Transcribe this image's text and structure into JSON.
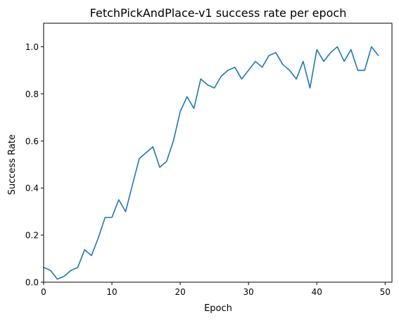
{
  "chart_data": {
    "type": "line",
    "title": "FetchPickAndPlace-v1 success rate per epoch",
    "xlabel": "Epoch",
    "ylabel": "Success Rate",
    "xlim": [
      0,
      51
    ],
    "ylim": [
      0,
      1.1
    ],
    "xticks": [
      0,
      10,
      20,
      30,
      40,
      50
    ],
    "yticks": [
      0.0,
      0.2,
      0.4,
      0.6,
      0.8,
      1.0
    ],
    "xtick_labels": [
      "0",
      "10",
      "20",
      "30",
      "40",
      "50"
    ],
    "ytick_labels": [
      "0.0",
      "0.2",
      "0.4",
      "0.6",
      "0.8",
      "1.0"
    ],
    "grid": false,
    "legend": "none",
    "series": [
      {
        "color": "#1f77b4",
        "x": [
          0,
          1,
          2,
          3,
          4,
          5,
          6,
          7,
          8,
          9,
          10,
          11,
          12,
          13,
          14,
          15,
          16,
          17,
          18,
          19,
          20,
          21,
          22,
          23,
          24,
          25,
          26,
          27,
          28,
          29,
          30,
          31,
          32,
          33,
          34,
          35,
          36,
          37,
          38,
          39,
          40,
          41,
          42,
          43,
          44,
          45,
          46,
          47,
          48,
          49
        ],
        "y": [
          0.063,
          0.05,
          0.013,
          0.025,
          0.05,
          0.063,
          0.138,
          0.113,
          0.188,
          0.275,
          0.275,
          0.35,
          0.3,
          0.413,
          0.525,
          0.55,
          0.575,
          0.488,
          0.513,
          0.6,
          0.725,
          0.788,
          0.738,
          0.863,
          0.838,
          0.825,
          0.875,
          0.9,
          0.913,
          0.863,
          0.9,
          0.938,
          0.913,
          0.963,
          0.975,
          0.925,
          0.9,
          0.863,
          0.938,
          0.825,
          0.988,
          0.938,
          0.975,
          1.0,
          0.938,
          0.988,
          0.9,
          0.9,
          1.0,
          0.963
        ]
      }
    ]
  }
}
